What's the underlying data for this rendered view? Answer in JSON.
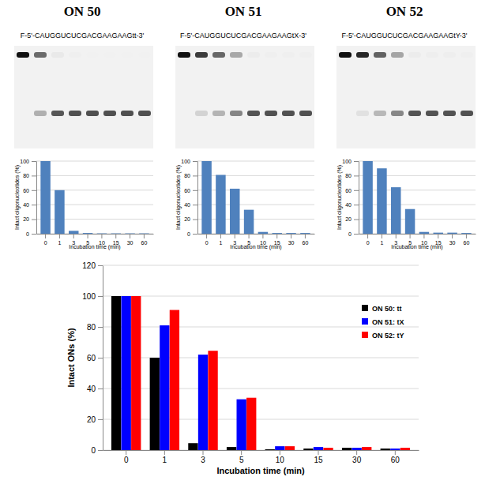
{
  "chart_data": [
    {
      "type": "bar",
      "title": "ON 50",
      "subtitle": "F-5'-CAUGGUCUCGACGAAGAAGtt-3'",
      "x_label": "Incubation time (min)",
      "y_label": "Intact oligonucleotides (%)",
      "categories": [
        "0",
        "1",
        "3",
        "5",
        "10",
        "15",
        "30",
        "60"
      ],
      "values": [
        100,
        60,
        4,
        1,
        0.5,
        0.5,
        0.5,
        0.5
      ],
      "color": "#4f81bd",
      "ylim": [
        0,
        100
      ],
      "yticks": [
        0,
        20,
        40,
        60,
        80,
        100
      ],
      "grid": true
    },
    {
      "type": "bar",
      "title": "ON 51",
      "subtitle": "F-5'-CAUGGUCUCGACGAAGAAGtX-3'",
      "x_label": "Incubation time (min)",
      "y_label": "Intact oligonucleotides (%)",
      "categories": [
        "0",
        "1",
        "3",
        "5",
        "10",
        "15",
        "30",
        "60"
      ],
      "values": [
        100,
        81,
        62,
        33,
        2.5,
        1,
        1,
        1
      ],
      "color": "#4f81bd",
      "ylim": [
        0,
        100
      ],
      "yticks": [
        0,
        20,
        40,
        60,
        80,
        100
      ],
      "grid": true
    },
    {
      "type": "bar",
      "title": "ON 52",
      "subtitle": "F-5'-CAUGGUCUCGACGAAGAAGtY-3'",
      "x_label": "Incubation time (min)",
      "y_label": "Intact oligonucleotides (%)",
      "categories": [
        "0",
        "1",
        "3",
        "5",
        "10",
        "15",
        "30",
        "60"
      ],
      "values": [
        100,
        90,
        64,
        34,
        2.5,
        1.5,
        1.5,
        1
      ],
      "color": "#4f81bd",
      "ylim": [
        0,
        100
      ],
      "yticks": [
        0,
        20,
        40,
        60,
        80,
        100
      ],
      "grid": true
    },
    {
      "type": "bar",
      "x_label": "Incubation time (min)",
      "y_label": "Intact ONs (%)",
      "categories": [
        "0",
        "1",
        "3",
        "5",
        "10",
        "15",
        "30",
        "60"
      ],
      "series": [
        {
          "name": "ON 50: tt",
          "color": "#000000",
          "values": [
            100,
            60,
            4.5,
            2,
            0.5,
            1,
            1.5,
            1
          ]
        },
        {
          "name": "ON 51: tX",
          "color": "#0000ff",
          "values": [
            100,
            81,
            62,
            33,
            2.5,
            2,
            1.5,
            1
          ]
        },
        {
          "name": "ON 52: tY",
          "color": "#ff0000",
          "values": [
            100,
            91,
            64.5,
            34,
            2.5,
            1.5,
            2,
            1.5
          ]
        }
      ],
      "ylim": [
        0,
        120
      ],
      "yticks": [
        0,
        20,
        40,
        60,
        80,
        100,
        120
      ],
      "grid": true,
      "legend": "upper right"
    }
  ]
}
